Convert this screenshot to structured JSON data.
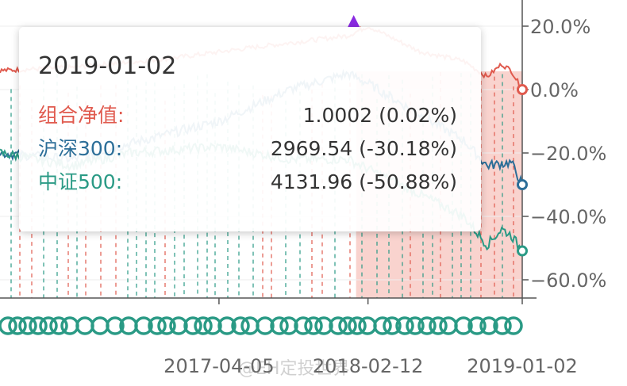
{
  "chart_data": {
    "type": "line",
    "x_range": [
      "2016-01-01",
      "2019-01-02"
    ],
    "ylim": [
      -65,
      25
    ],
    "y_ticks": [
      "20.0%",
      "0.0%",
      "−20.0%",
      "−40.0%",
      "−60.0%"
    ],
    "y_tick_values": [
      20,
      0,
      -20,
      -40,
      -60
    ],
    "x_ticks": [
      "2017-04-05",
      "2018-02-12",
      "2019-01-02"
    ],
    "x_tick_dates": [
      "2017-04-05",
      "2018-02-12",
      "2019-01-02"
    ],
    "series": [
      {
        "name": "组合净值",
        "color": "#e05a4e",
        "points": [
          [
            "2016-01-01",
            6
          ],
          [
            "2016-06-01",
            7
          ],
          [
            "2017-01-01",
            10
          ],
          [
            "2017-06-01",
            13
          ],
          [
            "2018-01-01",
            17
          ],
          [
            "2018-02-12",
            20
          ],
          [
            "2018-06-01",
            12
          ],
          [
            "2018-09-01",
            9
          ],
          [
            "2018-10-20",
            4
          ],
          [
            "2018-11-20",
            8
          ],
          [
            "2018-12-10",
            6
          ],
          [
            "2019-01-02",
            0
          ]
        ]
      },
      {
        "name": "沪深300",
        "color": "#2c6e98",
        "points": [
          [
            "2016-01-01",
            -20
          ],
          [
            "2016-06-01",
            -22
          ],
          [
            "2016-10-01",
            -17
          ],
          [
            "2017-04-05",
            -10
          ],
          [
            "2017-09-01",
            0
          ],
          [
            "2018-01-01",
            5
          ],
          [
            "2018-02-12",
            2
          ],
          [
            "2018-06-01",
            -8
          ],
          [
            "2018-09-01",
            -16
          ],
          [
            "2018-10-20",
            -24
          ],
          [
            "2018-12-10",
            -23
          ],
          [
            "2019-01-02",
            -30
          ]
        ]
      },
      {
        "name": "中证500",
        "color": "#2a9a85",
        "points": [
          [
            "2016-01-01",
            -20
          ],
          [
            "2016-06-01",
            -24
          ],
          [
            "2016-10-01",
            -20
          ],
          [
            "2017-04-05",
            -18
          ],
          [
            "2017-09-01",
            -22
          ],
          [
            "2018-01-01",
            -22
          ],
          [
            "2018-02-12",
            -25
          ],
          [
            "2018-06-01",
            -33
          ],
          [
            "2018-09-01",
            -40
          ],
          [
            "2018-10-20",
            -49
          ],
          [
            "2018-11-20",
            -44
          ],
          [
            "2018-12-10",
            -46
          ],
          [
            "2019-01-02",
            -50.88
          ]
        ]
      }
    ]
  },
  "tooltip": {
    "date": "2019-01-02",
    "rows": [
      {
        "label": "组合净值:",
        "value": "1.0002 (0.02%)",
        "color": "#e05a4e"
      },
      {
        "label": "沪深300:",
        "value": "2969.54 (-30.18%)",
        "color": "#2c6e98"
      },
      {
        "label": "中证500:",
        "value": "4131.96 (-50.88%)",
        "color": "#2a9a85"
      }
    ]
  },
  "watermark": "@EH定投世界"
}
